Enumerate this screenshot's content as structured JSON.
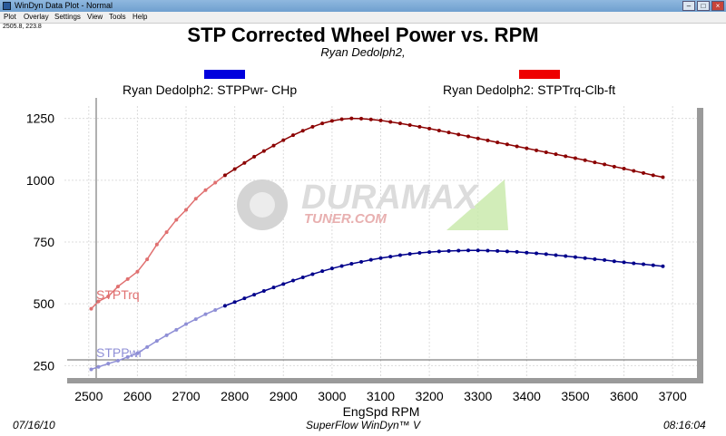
{
  "window": {
    "title": "WinDyn Data Plot - Normal",
    "menu": [
      "Plot",
      "Overlay",
      "Settings",
      "View",
      "Tools",
      "Help"
    ],
    "coord_readout": "2505.8, 223.8"
  },
  "colors": {
    "power": "#00008b",
    "power_light": "#8f8fd6",
    "torque": "#8b0000",
    "torque_light": "#e07070",
    "legend_power": "#0000dd",
    "legend_torque": "#ee0000"
  },
  "chart_data": {
    "type": "line",
    "title": "STP Corrected Wheel Power vs. RPM",
    "subtitle": "Ryan Dedolph2,",
    "xlabel": "EngSpd  RPM",
    "ylabel": "",
    "xlim": [
      2450,
      3750
    ],
    "ylim": [
      200,
      1300
    ],
    "x_ticks": [
      2500,
      2600,
      2700,
      2800,
      2900,
      3000,
      3100,
      3200,
      3300,
      3400,
      3500,
      3600,
      3700
    ],
    "y_ticks": [
      250,
      500,
      750,
      1000,
      1250
    ],
    "grid": true,
    "series": [
      {
        "name": "Ryan Dedolph2: STPPwr- CHp",
        "inline_label": "STPPwr",
        "color": "#00008b",
        "points": [
          [
            2505,
            235
          ],
          [
            2520,
            245
          ],
          [
            2540,
            258
          ],
          [
            2560,
            270
          ],
          [
            2580,
            285
          ],
          [
            2600,
            300
          ],
          [
            2620,
            325
          ],
          [
            2640,
            350
          ],
          [
            2660,
            373
          ],
          [
            2680,
            395
          ],
          [
            2700,
            418
          ],
          [
            2720,
            438
          ],
          [
            2740,
            458
          ],
          [
            2760,
            475
          ],
          [
            2780,
            492
          ],
          [
            2800,
            507
          ],
          [
            2820,
            522
          ],
          [
            2840,
            537
          ],
          [
            2860,
            552
          ],
          [
            2880,
            566
          ],
          [
            2900,
            580
          ],
          [
            2920,
            594
          ],
          [
            2940,
            607
          ],
          [
            2960,
            620
          ],
          [
            2980,
            632
          ],
          [
            3000,
            643
          ],
          [
            3020,
            653
          ],
          [
            3040,
            662
          ],
          [
            3060,
            670
          ],
          [
            3080,
            678
          ],
          [
            3100,
            685
          ],
          [
            3120,
            691
          ],
          [
            3140,
            697
          ],
          [
            3160,
            702
          ],
          [
            3180,
            706
          ],
          [
            3200,
            709
          ],
          [
            3220,
            712
          ],
          [
            3240,
            714
          ],
          [
            3260,
            715
          ],
          [
            3280,
            716
          ],
          [
            3300,
            716
          ],
          [
            3320,
            715
          ],
          [
            3340,
            714
          ],
          [
            3360,
            712
          ],
          [
            3380,
            710
          ],
          [
            3400,
            707
          ],
          [
            3420,
            704
          ],
          [
            3440,
            701
          ],
          [
            3460,
            697
          ],
          [
            3480,
            693
          ],
          [
            3500,
            689
          ],
          [
            3520,
            685
          ],
          [
            3540,
            681
          ],
          [
            3560,
            677
          ],
          [
            3580,
            672
          ],
          [
            3600,
            668
          ],
          [
            3620,
            664
          ],
          [
            3640,
            660
          ],
          [
            3660,
            656
          ],
          [
            3680,
            652
          ]
        ]
      },
      {
        "name": "Ryan Dedolph2: STPTrq-Clb-ft",
        "inline_label": "STPTrq",
        "color": "#8b0000",
        "points": [
          [
            2505,
            480
          ],
          [
            2520,
            510
          ],
          [
            2540,
            530
          ],
          [
            2560,
            570
          ],
          [
            2580,
            600
          ],
          [
            2600,
            630
          ],
          [
            2620,
            680
          ],
          [
            2640,
            740
          ],
          [
            2660,
            790
          ],
          [
            2680,
            840
          ],
          [
            2700,
            880
          ],
          [
            2720,
            925
          ],
          [
            2740,
            960
          ],
          [
            2760,
            990
          ],
          [
            2780,
            1020
          ],
          [
            2800,
            1045
          ],
          [
            2820,
            1070
          ],
          [
            2840,
            1095
          ],
          [
            2860,
            1118
          ],
          [
            2880,
            1140
          ],
          [
            2900,
            1162
          ],
          [
            2920,
            1182
          ],
          [
            2940,
            1200
          ],
          [
            2960,
            1216
          ],
          [
            2980,
            1230
          ],
          [
            3000,
            1240
          ],
          [
            3020,
            1247
          ],
          [
            3040,
            1250
          ],
          [
            3060,
            1249
          ],
          [
            3080,
            1246
          ],
          [
            3100,
            1242
          ],
          [
            3120,
            1236
          ],
          [
            3140,
            1230
          ],
          [
            3160,
            1223
          ],
          [
            3180,
            1216
          ],
          [
            3200,
            1209
          ],
          [
            3220,
            1201
          ],
          [
            3240,
            1193
          ],
          [
            3260,
            1185
          ],
          [
            3280,
            1177
          ],
          [
            3300,
            1169
          ],
          [
            3320,
            1161
          ],
          [
            3340,
            1153
          ],
          [
            3360,
            1145
          ],
          [
            3380,
            1137
          ],
          [
            3400,
            1129
          ],
          [
            3420,
            1121
          ],
          [
            3440,
            1113
          ],
          [
            3460,
            1105
          ],
          [
            3480,
            1097
          ],
          [
            3500,
            1089
          ],
          [
            3520,
            1081
          ],
          [
            3540,
            1072
          ],
          [
            3560,
            1064
          ],
          [
            3580,
            1055
          ],
          [
            3600,
            1047
          ],
          [
            3620,
            1038
          ],
          [
            3640,
            1029
          ],
          [
            3660,
            1020
          ],
          [
            3680,
            1012
          ]
        ]
      }
    ]
  },
  "footer": {
    "date": "07/16/10",
    "software": "SuperFlow WinDyn™ V",
    "time": "08:16:04"
  }
}
